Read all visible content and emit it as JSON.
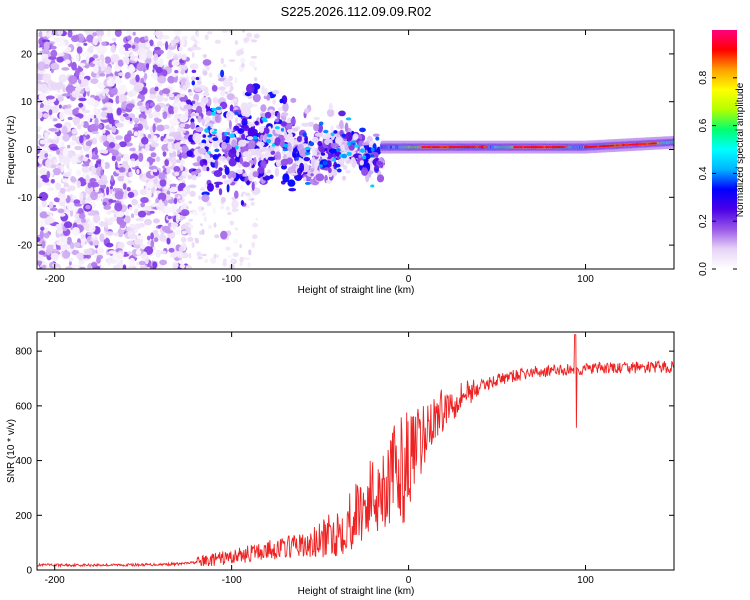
{
  "title": "S225.2026.112.09.09.R02",
  "chart_data": [
    {
      "type": "heatmap",
      "xlabel": "Height of straight line (km)",
      "ylabel": "Frequency (Hz)",
      "xlim": [
        -210,
        150
      ],
      "ylim": [
        -25,
        25
      ],
      "xticks": [
        -200,
        -100,
        0,
        100
      ],
      "yticks": [
        -20,
        -10,
        0,
        10,
        20
      ],
      "colorbar": {
        "label": "Normalized spectral amplitude",
        "range": [
          0,
          1
        ],
        "ticks": [
          "0.0",
          "0.2",
          "0.4",
          "0.6",
          "0.8"
        ],
        "colors": [
          "#ffffff",
          "#e7d4f6",
          "#9a57e8",
          "#4a00e6",
          "#0000ff",
          "#00b4ff",
          "#00ffff",
          "#00ff6e",
          "#b4ff00",
          "#ffff00",
          "#ffa000",
          "#ff0000",
          "#ff0080"
        ]
      },
      "regions": [
        {
          "name": "noise",
          "x_range": [
            -210,
            -125
          ],
          "freq_range": [
            -25,
            25
          ],
          "amplitude_range": [
            0.0,
            0.18
          ]
        },
        {
          "name": "scattered-signal",
          "x_range": [
            -125,
            -15
          ],
          "freq_range": [
            -15,
            10
          ],
          "amplitude_range": [
            0.05,
            0.35
          ]
        },
        {
          "name": "tonal-line",
          "x_range": [
            -15,
            150
          ],
          "freq_center": 0.5,
          "amplitude_range": [
            0.3,
            0.95
          ]
        }
      ]
    },
    {
      "type": "line",
      "xlabel": "Height of straight line (km)",
      "ylabel": "SNR (10 * v/v)",
      "xlim": [
        -210,
        150
      ],
      "ylim": [
        0,
        870
      ],
      "xticks": [
        -200,
        -100,
        0,
        100
      ],
      "yticks": [
        0,
        200,
        400,
        600,
        800
      ],
      "series": [
        {
          "name": "SNR",
          "color": "#ee2222",
          "x": [
            -210,
            -180,
            -150,
            -130,
            -120,
            -110,
            -100,
            -90,
            -80,
            -70,
            -60,
            -50,
            -40,
            -30,
            -20,
            -10,
            0,
            10,
            20,
            30,
            40,
            50,
            60,
            70,
            80,
            90,
            100,
            110,
            120,
            130,
            140,
            150
          ],
          "y": [
            18,
            18,
            19,
            22,
            28,
            38,
            48,
            60,
            72,
            82,
            95,
            125,
            170,
            240,
            320,
            390,
            450,
            520,
            590,
            640,
            670,
            695,
            710,
            722,
            728,
            732,
            735,
            737,
            738,
            740,
            741,
            742
          ]
        }
      ],
      "annotations": [
        {
          "x": 94,
          "y_max": 860,
          "y_min": 520,
          "label": "spike"
        }
      ]
    }
  ]
}
